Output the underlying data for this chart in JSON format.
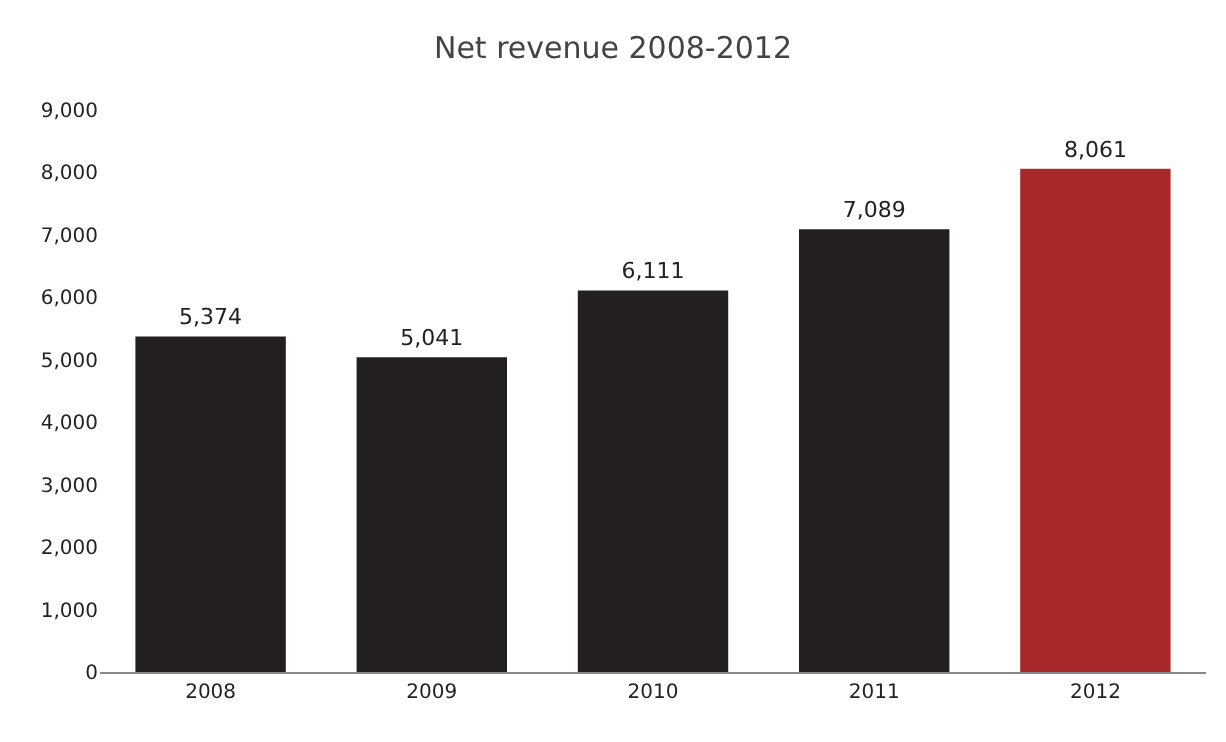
{
  "chart_data": {
    "type": "bar",
    "title": "Net revenue 2008-2012",
    "categories": [
      "2008",
      "2009",
      "2010",
      "2011",
      "2012"
    ],
    "values": [
      5374,
      5041,
      6111,
      7089,
      8061
    ],
    "colors": [
      "#231f20",
      "#231f20",
      "#231f20",
      "#231f20",
      "#a8292a"
    ],
    "value_labels": [
      "5,374",
      "5,041",
      "6,111",
      "7,089",
      "8,061"
    ],
    "ylim": [
      0,
      9000
    ],
    "yticks": [
      {
        "value": 0,
        "label": "0"
      },
      {
        "value": 1000,
        "label": "1,000"
      },
      {
        "value": 2000,
        "label": "2,000"
      },
      {
        "value": 3000,
        "label": "3,000"
      },
      {
        "value": 4000,
        "label": "4,000"
      },
      {
        "value": 5000,
        "label": "5,000"
      },
      {
        "value": 6000,
        "label": "6,000"
      },
      {
        "value": 7000,
        "label": "7,000"
      },
      {
        "value": 8000,
        "label": "8,000"
      },
      {
        "value": 9000,
        "label": "9,000"
      }
    ],
    "grid": false
  }
}
